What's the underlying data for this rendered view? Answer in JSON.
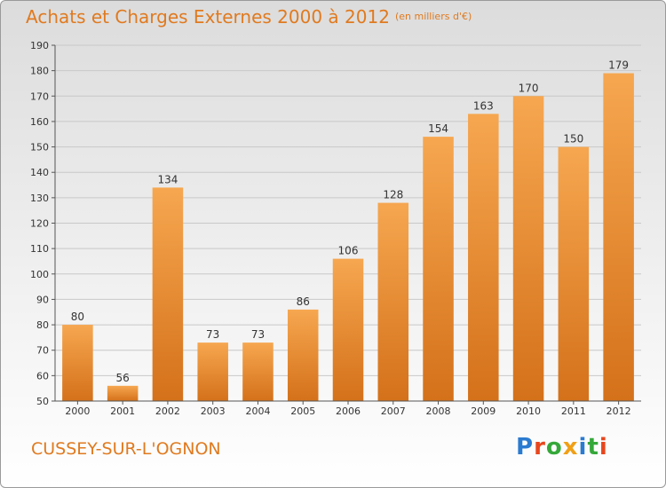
{
  "title": "Achats et Charges Externes 2000 à 2012",
  "subtitle": "(en milliers d'€)",
  "commune": "CUSSEY-SUR-L'OGNON",
  "logo_text": "Proxiti",
  "colors": {
    "accent": "#e07a1f",
    "bar_top": "#f6a750",
    "bar_bottom": "#d4711a",
    "grid": "#c8c8c8",
    "logo": [
      "#2b7bd0",
      "#e8461d",
      "#35a83a",
      "#f0a016",
      "#2b7bd0",
      "#35a83a",
      "#e8461d"
    ]
  },
  "chart_data": {
    "type": "bar",
    "title": "Achats et Charges Externes 2000 à 2012",
    "subtitle": "(en milliers d'€)",
    "xlabel": "",
    "ylabel": "",
    "categories": [
      "2000",
      "2001",
      "2002",
      "2003",
      "2004",
      "2005",
      "2006",
      "2007",
      "2008",
      "2009",
      "2010",
      "2011",
      "2012"
    ],
    "values": [
      80,
      56,
      134,
      73,
      73,
      86,
      106,
      128,
      154,
      163,
      170,
      150,
      179
    ],
    "ylim": [
      50,
      190
    ],
    "yticks": [
      50,
      60,
      70,
      80,
      90,
      100,
      110,
      120,
      130,
      140,
      150,
      160,
      170,
      180,
      190
    ],
    "grid": true,
    "data_labels": true
  }
}
